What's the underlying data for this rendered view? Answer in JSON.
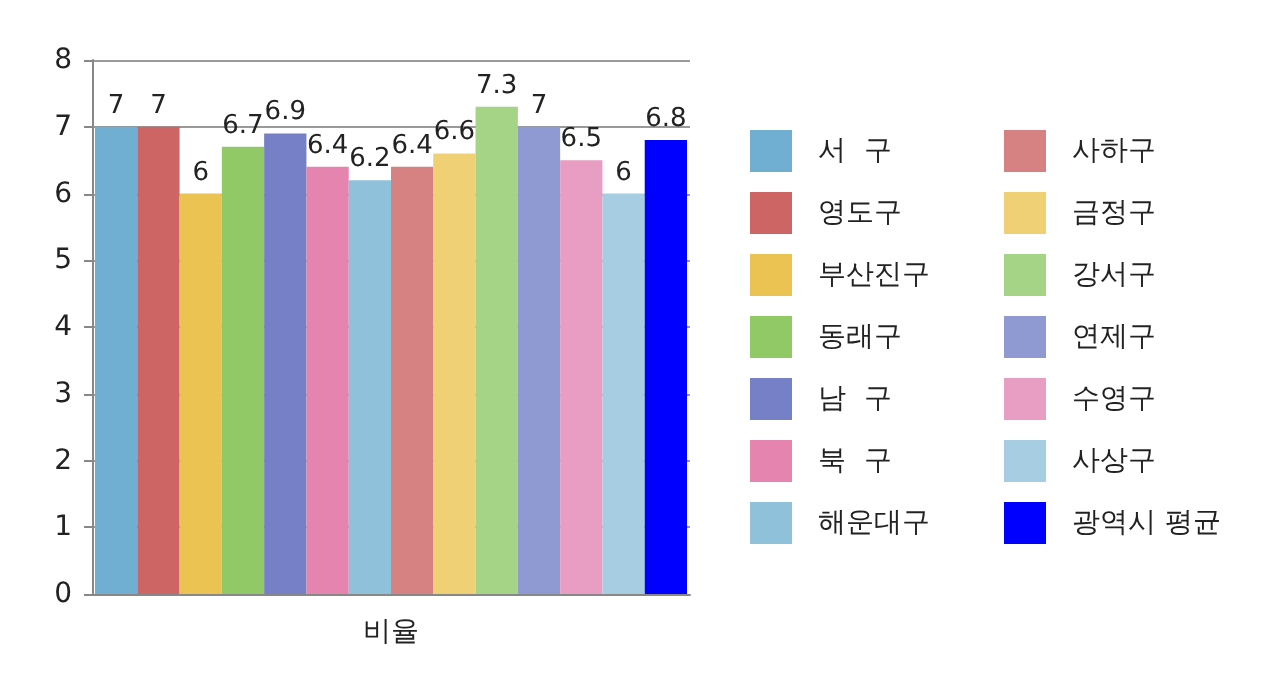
{
  "chart_data": {
    "type": "bar",
    "categories": [
      "비율"
    ],
    "series": [
      {
        "name": "서  구",
        "color": "#70afd2",
        "values": [
          7
        ]
      },
      {
        "name": "영도구",
        "color": "#cd6564",
        "values": [
          7
        ]
      },
      {
        "name": "부산진구",
        "color": "#ebc352",
        "values": [
          6
        ]
      },
      {
        "name": "동래구",
        "color": "#91c967",
        "values": [
          6.7
        ]
      },
      {
        "name": "남  구",
        "color": "#7580c6",
        "values": [
          6.9
        ]
      },
      {
        "name": "북  구",
        "color": "#e584ae",
        "values": [
          6.4
        ]
      },
      {
        "name": "해운대구",
        "color": "#8fc1da",
        "values": [
          6.2
        ]
      },
      {
        "name": "사하구",
        "color": "#d68283",
        "values": [
          6.4
        ]
      },
      {
        "name": "금정구",
        "color": "#efd074",
        "values": [
          6.6
        ]
      },
      {
        "name": "강서구",
        "color": "#a5d486",
        "values": [
          7.3
        ]
      },
      {
        "name": "연제구",
        "color": "#8f9ad2",
        "values": [
          7
        ]
      },
      {
        "name": "수영구",
        "color": "#e89dc2",
        "values": [
          6.5
        ]
      },
      {
        "name": "사상구",
        "color": "#a6cde1",
        "values": [
          6
        ]
      },
      {
        "name": "광역시 평균",
        "color": "#0000ff",
        "values": [
          6.8
        ]
      }
    ],
    "ylim": [
      0,
      8
    ],
    "yticks": [
      0,
      1,
      2,
      3,
      4,
      5,
      6,
      7,
      8
    ],
    "grid": "y",
    "data_labels": true,
    "legend": "right"
  }
}
